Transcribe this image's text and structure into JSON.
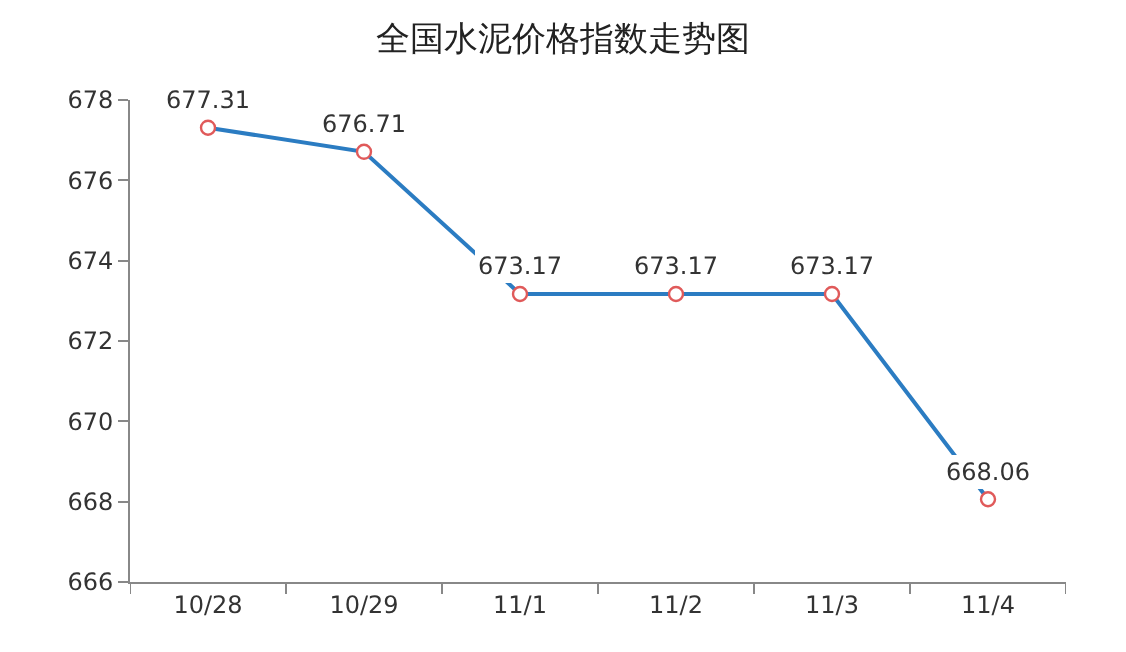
{
  "chart_data": {
    "type": "line",
    "title": "全国水泥价格指数走势图",
    "categories": [
      "10/28",
      "10/29",
      "11/1",
      "11/2",
      "11/3",
      "11/4"
    ],
    "series": [
      {
        "color": "#2b7cc2",
        "values": [
          677.31,
          676.71,
          673.17,
          673.17,
          673.17,
          668.06
        ]
      }
    ],
    "ylim": [
      666,
      678
    ],
    "yticks": [
      666,
      668,
      670,
      672,
      674,
      676,
      678
    ],
    "data_labels": true,
    "marker": "circle",
    "line_style": "solid"
  }
}
